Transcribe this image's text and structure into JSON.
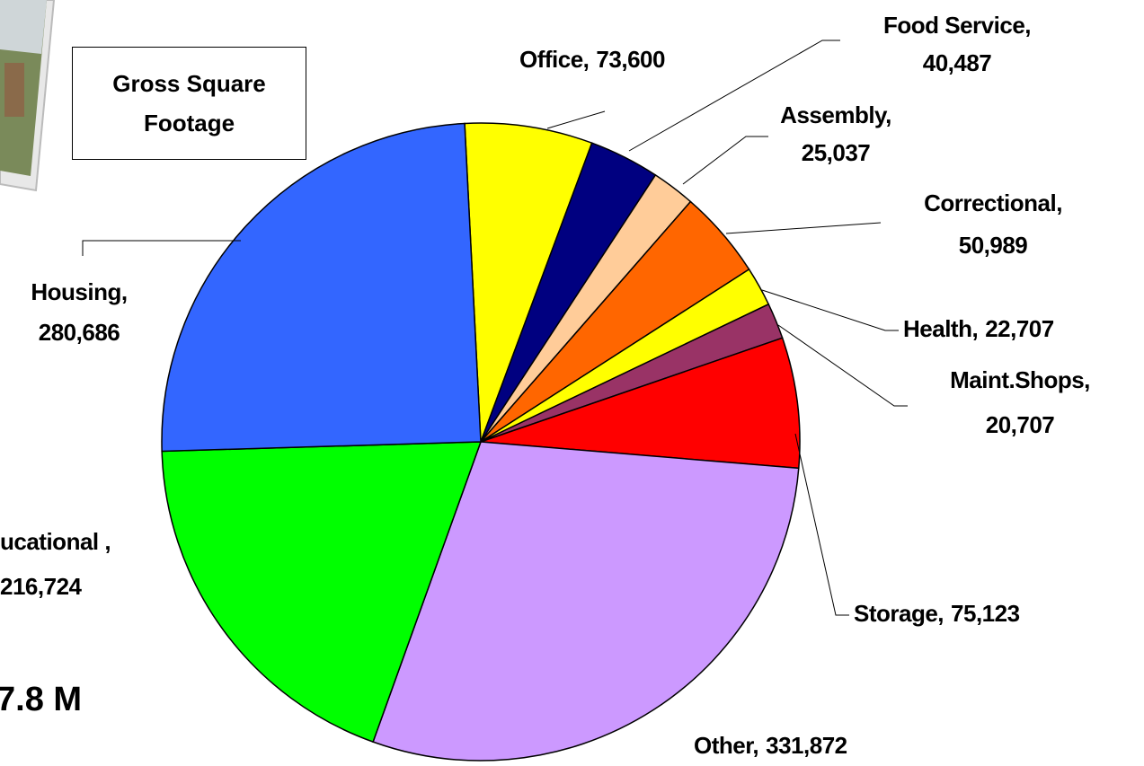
{
  "chart_data": {
    "type": "pie",
    "title": "Gross Square Footage",
    "note": "7.8 M",
    "categories": [
      "Office,",
      "Food Service,",
      "Assembly,",
      "Correctional,",
      "Health,",
      "Maint.Shops,",
      "Storage,",
      "Other,",
      "ucational ,",
      "Housing,"
    ],
    "values": [
      73600,
      40487,
      25037,
      50989,
      22707,
      20707,
      75123,
      331872,
      216724,
      280686
    ],
    "value_labels": [
      "73,600",
      "40,487",
      "25,037",
      "50,989",
      "22,707",
      "20,707",
      "75,123",
      "331,872",
      "216,724",
      "280,686"
    ],
    "colors": [
      "#ffff00",
      "#000080",
      "#ffcc99",
      "#ff6600",
      "#ffff00",
      "#993366",
      "#ff0000",
      "#cc99ff",
      "#00ff00",
      "#3366ff"
    ]
  }
}
